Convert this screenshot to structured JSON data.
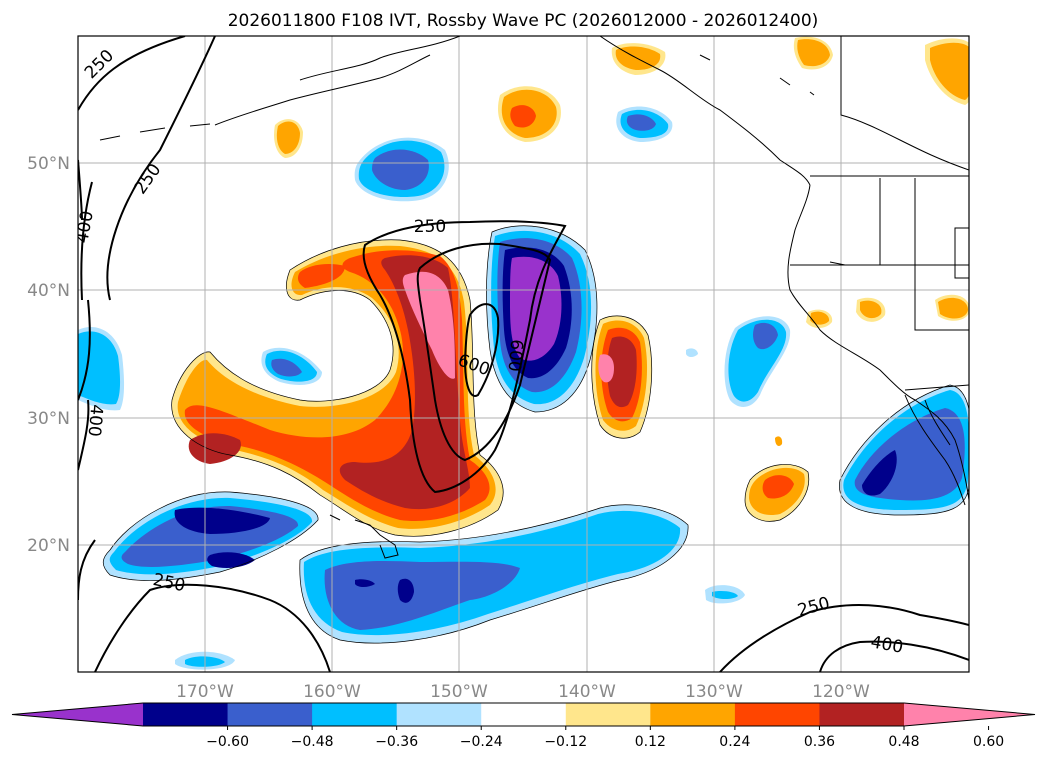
{
  "title": "2026011800 F108 IVT, Rossby Wave PC (2026012000 - 2026012400)",
  "lat_labels": [
    "50°N",
    "40°N",
    "30°N",
    "20°N"
  ],
  "lon_labels": [
    "170°W",
    "160°W",
    "150°W",
    "140°W",
    "130°W",
    "120°W"
  ],
  "contour_labels": {
    "nw_upper": "250",
    "nw_lower": "250",
    "west_a": "400",
    "west_b": "400",
    "center": "250",
    "core_a": "600",
    "core_b": "600",
    "south": "250",
    "se": "250",
    "se_inner": "400"
  },
  "colorbar": {
    "ticks": [
      "−0.60",
      "−0.48",
      "−0.36",
      "−0.24",
      "−0.12",
      "0.12",
      "0.24",
      "0.36",
      "0.48",
      "0.60"
    ],
    "colors": [
      "#9932CC",
      "#00008B",
      "#3A5FCD",
      "#00BFFF",
      "#B0E2FF",
      "#FFFFFF",
      "#FFE68C",
      "#FFA500",
      "#FF4500",
      "#B22222",
      "#FF82AB"
    ]
  },
  "palette": {
    "purple": "#9932CC",
    "navy": "#00008B",
    "royal": "#3A5FCD",
    "sky": "#00BFFF",
    "pale_blue": "#B0E2FF",
    "pale_yellow": "#FFE68C",
    "orange": "#FFA500",
    "red_orange": "#FF4500",
    "firebrick": "#B22222",
    "pink": "#FF82AB"
  }
}
